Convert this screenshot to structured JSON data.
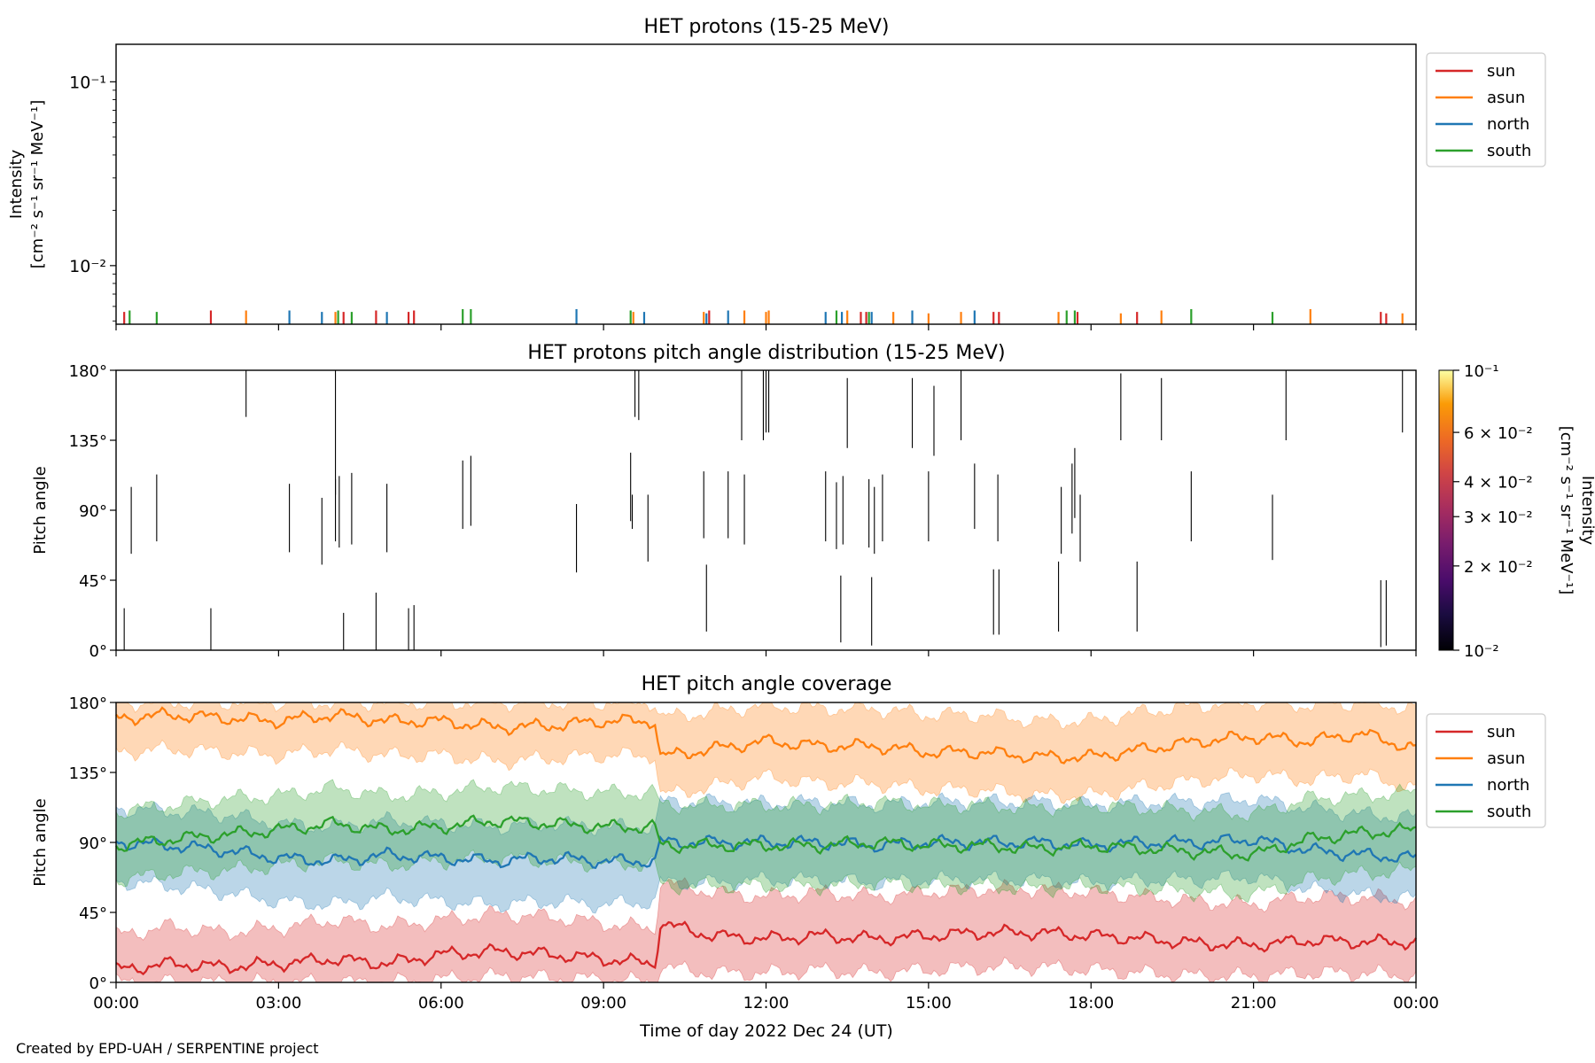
{
  "credit": "Created by EPD-UAH / SERPENTINE project",
  "xlabel": "Time of day 2022 Dec 24 (UT)",
  "x_ticks": [
    "00:00",
    "03:00",
    "06:00",
    "09:00",
    "12:00",
    "15:00",
    "18:00",
    "21:00",
    "00:00"
  ],
  "colors": {
    "sun": "#d62728",
    "asun": "#ff7f0e",
    "north": "#1f77b4",
    "south": "#2ca02c"
  },
  "chart_data": [
    {
      "type": "line",
      "title": "HET protons (15-25 MeV)",
      "ylabel": "Intensity",
      "ylabel_unit": "[cm⁻² s⁻¹ sr⁻¹ MeV⁻¹]",
      "yscale": "log",
      "ylim": [
        0.0048,
        0.16
      ],
      "y_ticks": [
        "10⁻¹",
        "10⁻²"
      ],
      "x_unit": "hours",
      "xlim": [
        0,
        24
      ],
      "legend": [
        "sun",
        "asun",
        "north",
        "south"
      ],
      "legend_position": "outside-right",
      "series": [
        {
          "name": "sun",
          "values": [
            [
              0.15,
              0.0056
            ],
            [
              1.75,
              0.0057
            ],
            [
              4.2,
              0.0056
            ],
            [
              4.8,
              0.0057
            ],
            [
              5.4,
              0.0056
            ],
            [
              5.5,
              0.0057
            ],
            [
              10.95,
              0.0057
            ],
            [
              13.75,
              0.0056
            ],
            [
              13.85,
              0.0056
            ],
            [
              16.2,
              0.0056
            ],
            [
              16.3,
              0.0056
            ],
            [
              17.75,
              0.0056
            ],
            [
              18.85,
              0.0056
            ],
            [
              23.35,
              0.0056
            ],
            [
              23.45,
              0.0055
            ]
          ]
        },
        {
          "name": "asun",
          "values": [
            [
              2.4,
              0.0057
            ],
            [
              4.05,
              0.0056
            ],
            [
              9.55,
              0.0056
            ],
            [
              10.85,
              0.0056
            ],
            [
              11.6,
              0.0057
            ],
            [
              12.0,
              0.0056
            ],
            [
              12.05,
              0.0057
            ],
            [
              13.5,
              0.0057
            ],
            [
              14.35,
              0.0056
            ],
            [
              15.0,
              0.0055
            ],
            [
              15.6,
              0.0056
            ],
            [
              17.4,
              0.0056
            ],
            [
              18.55,
              0.0055
            ],
            [
              19.3,
              0.0057
            ],
            [
              22.05,
              0.0058
            ],
            [
              23.75,
              0.0055
            ]
          ]
        },
        {
          "name": "north",
          "values": [
            [
              3.2,
              0.0057
            ],
            [
              3.8,
              0.0056
            ],
            [
              5.0,
              0.0056
            ],
            [
              8.5,
              0.0058
            ],
            [
              9.75,
              0.0056
            ],
            [
              10.9,
              0.0055
            ],
            [
              11.3,
              0.0057
            ],
            [
              13.1,
              0.0056
            ],
            [
              13.4,
              0.0056
            ],
            [
              13.95,
              0.0056
            ],
            [
              14.7,
              0.0057
            ],
            [
              15.85,
              0.0057
            ]
          ]
        },
        {
          "name": "south",
          "values": [
            [
              0.25,
              0.0057
            ],
            [
              0.75,
              0.0056
            ],
            [
              4.1,
              0.0057
            ],
            [
              4.35,
              0.0056
            ],
            [
              6.4,
              0.0058
            ],
            [
              6.55,
              0.0058
            ],
            [
              9.5,
              0.0057
            ],
            [
              13.3,
              0.0057
            ],
            [
              13.9,
              0.0056
            ],
            [
              17.55,
              0.0057
            ],
            [
              17.7,
              0.0057
            ],
            [
              19.85,
              0.0058
            ],
            [
              21.35,
              0.0056
            ]
          ]
        }
      ]
    },
    {
      "type": "heatmap",
      "title": "HET protons pitch angle distribution (15-25 MeV)",
      "ylabel": "Pitch angle",
      "ylim": [
        0,
        180
      ],
      "y_ticks": [
        "0°",
        "45°",
        "90°",
        "135°",
        "180°"
      ],
      "x_unit": "hours",
      "xlim": [
        0,
        24
      ],
      "colorbar": {
        "label": "Intensity",
        "unit": "[cm⁻² s⁻¹ sr⁻¹ MeV⁻¹]",
        "scale": "log",
        "range": [
          0.01,
          0.1
        ],
        "tick_labels": [
          "10⁻¹",
          "6 × 10⁻²",
          "4 × 10⁻²",
          "3 × 10⁻²",
          "2 × 10⁻²",
          "10⁻²"
        ],
        "tick_values": [
          0.1,
          0.06,
          0.04,
          0.03,
          0.02,
          0.01
        ],
        "colormap": "inferno"
      },
      "segments": [
        [
          0.15,
          0,
          27
        ],
        [
          0.28,
          62,
          105
        ],
        [
          0.75,
          70,
          113
        ],
        [
          1.75,
          0,
          27
        ],
        [
          2.4,
          150,
          180
        ],
        [
          3.2,
          63,
          107
        ],
        [
          3.8,
          55,
          98
        ],
        [
          4.05,
          100,
          180
        ],
        [
          4.05,
          70,
          110
        ],
        [
          4.12,
          66,
          112
        ],
        [
          4.2,
          0,
          24
        ],
        [
          4.35,
          68,
          114
        ],
        [
          4.8,
          0,
          37
        ],
        [
          5.0,
          63,
          107
        ],
        [
          5.4,
          0,
          27
        ],
        [
          5.5,
          0,
          29
        ],
        [
          6.4,
          78,
          122
        ],
        [
          6.55,
          80,
          125
        ],
        [
          8.5,
          50,
          94
        ],
        [
          9.5,
          83,
          127
        ],
        [
          9.53,
          78,
          100
        ],
        [
          9.58,
          150,
          180
        ],
        [
          9.65,
          148,
          180
        ],
        [
          9.82,
          57,
          100
        ],
        [
          10.85,
          72,
          115
        ],
        [
          10.9,
          12,
          55
        ],
        [
          11.3,
          72,
          115
        ],
        [
          11.55,
          135,
          180
        ],
        [
          11.6,
          68,
          113
        ],
        [
          11.95,
          135,
          180
        ],
        [
          12.0,
          140,
          180
        ],
        [
          12.05,
          140,
          180
        ],
        [
          13.1,
          70,
          115
        ],
        [
          13.3,
          65,
          108
        ],
        [
          13.38,
          5,
          48
        ],
        [
          13.42,
          68,
          112
        ],
        [
          13.5,
          130,
          175
        ],
        [
          13.9,
          66,
          110
        ],
        [
          13.95,
          3,
          47
        ],
        [
          14.0,
          62,
          105
        ],
        [
          14.15,
          70,
          113
        ],
        [
          14.7,
          130,
          175
        ],
        [
          15.0,
          70,
          115
        ],
        [
          15.1,
          125,
          170
        ],
        [
          15.6,
          135,
          180
        ],
        [
          15.85,
          78,
          120
        ],
        [
          16.2,
          10,
          52
        ],
        [
          16.3,
          10,
          52
        ],
        [
          16.28,
          70,
          113
        ],
        [
          17.4,
          12,
          57
        ],
        [
          17.45,
          62,
          105
        ],
        [
          17.65,
          75,
          120
        ],
        [
          17.7,
          85,
          130
        ],
        [
          17.8,
          57,
          100
        ],
        [
          18.55,
          135,
          178
        ],
        [
          18.85,
          12,
          57
        ],
        [
          19.3,
          135,
          175
        ],
        [
          19.85,
          70,
          115
        ],
        [
          21.35,
          58,
          100
        ],
        [
          21.6,
          135,
          180
        ],
        [
          23.35,
          2,
          45
        ],
        [
          23.45,
          3,
          45
        ],
        [
          23.75,
          140,
          180
        ]
      ]
    },
    {
      "type": "area",
      "title": "HET pitch angle coverage",
      "ylabel": "Pitch angle",
      "ylim": [
        0,
        180
      ],
      "y_ticks": [
        "0°",
        "45°",
        "90°",
        "135°",
        "180°"
      ],
      "x_unit": "hours",
      "xlim": [
        0,
        24
      ],
      "legend": [
        "sun",
        "asun",
        "north",
        "south"
      ],
      "legend_position": "outside-right",
      "series": [
        {
          "name": "sun",
          "x": [
            0,
            1,
            2,
            3,
            4,
            5,
            6,
            7,
            8,
            9,
            9.95,
            10.05,
            11,
            12,
            13,
            14,
            15,
            16,
            17,
            18,
            19,
            20,
            21,
            22,
            23,
            24
          ],
          "mean": [
            8,
            12,
            10,
            12,
            15,
            12,
            18,
            20,
            18,
            15,
            12,
            38,
            30,
            28,
            30,
            28,
            30,
            32,
            32,
            30,
            28,
            25,
            24,
            27,
            26,
            26
          ],
          "lower": [
            0,
            0,
            0,
            0,
            0,
            0,
            2,
            4,
            3,
            2,
            0,
            10,
            6,
            6,
            8,
            6,
            8,
            10,
            10,
            8,
            6,
            4,
            4,
            6,
            6,
            4
          ],
          "upper": [
            30,
            36,
            32,
            35,
            40,
            36,
            40,
            44,
            42,
            38,
            34,
            65,
            58,
            55,
            58,
            55,
            58,
            60,
            60,
            58,
            55,
            52,
            50,
            55,
            55,
            52
          ]
        },
        {
          "name": "asun",
          "x": [
            0,
            1,
            2,
            3,
            4,
            5,
            6,
            7,
            8,
            9,
            9.95,
            10.05,
            11,
            12,
            13,
            14,
            15,
            16,
            17,
            18,
            19,
            20,
            21,
            22,
            23,
            24
          ],
          "mean": [
            170,
            172,
            170,
            168,
            172,
            168,
            168,
            164,
            165,
            168,
            168,
            145,
            150,
            155,
            152,
            152,
            148,
            148,
            145,
            145,
            150,
            155,
            158,
            155,
            160,
            150
          ],
          "lower": [
            148,
            150,
            148,
            146,
            150,
            146,
            146,
            142,
            144,
            146,
            146,
            120,
            126,
            132,
            128,
            128,
            124,
            124,
            120,
            120,
            126,
            130,
            134,
            130,
            134,
            124
          ],
          "upper": [
            180,
            180,
            180,
            180,
            180,
            180,
            180,
            180,
            180,
            180,
            180,
            170,
            174,
            178,
            176,
            176,
            172,
            172,
            168,
            168,
            174,
            178,
            180,
            178,
            180,
            176
          ]
        },
        {
          "name": "north",
          "x": [
            0,
            1,
            2,
            3,
            4,
            5,
            6,
            7,
            8,
            9,
            9.95,
            10.05,
            11,
            12,
            13,
            14,
            15,
            16,
            17,
            18,
            19,
            20,
            21,
            22,
            23,
            24
          ],
          "mean": [
            90,
            88,
            85,
            80,
            78,
            82,
            80,
            78,
            80,
            78,
            78,
            90,
            90,
            90,
            90,
            88,
            90,
            90,
            90,
            88,
            90,
            90,
            92,
            85,
            82,
            80
          ],
          "lower": [
            65,
            62,
            58,
            52,
            50,
            55,
            52,
            50,
            52,
            50,
            52,
            64,
            64,
            66,
            66,
            64,
            66,
            66,
            66,
            64,
            66,
            66,
            68,
            60,
            56,
            54
          ],
          "upper": [
            112,
            110,
            108,
            102,
            100,
            104,
            102,
            100,
            102,
            100,
            100,
            116,
            116,
            115,
            116,
            114,
            116,
            116,
            116,
            114,
            116,
            116,
            118,
            112,
            108,
            106
          ]
        },
        {
          "name": "south",
          "x": [
            0,
            1,
            2,
            3,
            4,
            5,
            6,
            7,
            8,
            9,
            9.95,
            10.05,
            11,
            12,
            13,
            14,
            15,
            16,
            17,
            18,
            19,
            20,
            21,
            22,
            23,
            24
          ],
          "mean": [
            88,
            92,
            95,
            98,
            102,
            98,
            100,
            104,
            102,
            100,
            100,
            88,
            88,
            88,
            88,
            90,
            88,
            88,
            86,
            88,
            86,
            84,
            82,
            92,
            96,
            98
          ],
          "lower": [
            66,
            70,
            72,
            75,
            78,
            75,
            78,
            80,
            78,
            76,
            76,
            62,
            62,
            62,
            62,
            64,
            62,
            62,
            60,
            62,
            60,
            58,
            56,
            66,
            70,
            72
          ],
          "upper": [
            110,
            114,
            118,
            120,
            125,
            120,
            122,
            126,
            124,
            122,
            122,
            114,
            114,
            114,
            114,
            116,
            114,
            114,
            112,
            114,
            112,
            110,
            108,
            118,
            120,
            122
          ]
        }
      ]
    }
  ]
}
